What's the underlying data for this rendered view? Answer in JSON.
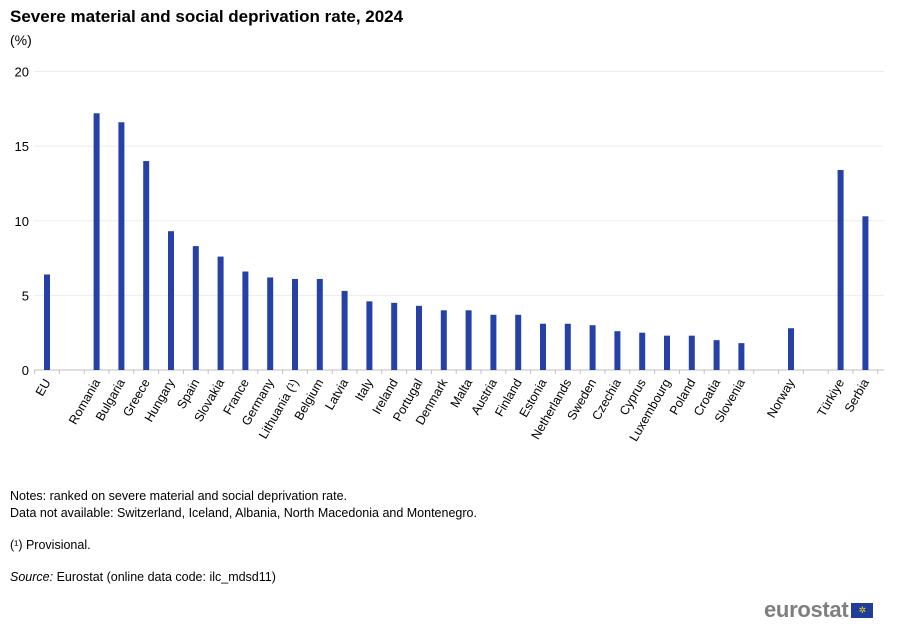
{
  "chart_data": {
    "type": "bar",
    "title": "Severe material and social deprivation rate, 2024",
    "ylabel": "(%)",
    "ylim": [
      0,
      20
    ],
    "yticks": [
      0,
      5,
      10,
      15,
      20
    ],
    "grid": true,
    "color": "#2541a8",
    "categories": [
      "EU",
      "Romania",
      "Bulgaria",
      "Greece",
      "Hungary",
      "Spain",
      "Slovakia",
      "France",
      "Germany",
      "Lithuania (¹)",
      "Belgium",
      "Latvia",
      "Italy",
      "Ireland",
      "Portugal",
      "Denmark",
      "Malta",
      "Austria",
      "Finland",
      "Estonia",
      "Netherlands",
      "Sweden",
      "Czechia",
      "Cyprus",
      "Luxembourg",
      "Poland",
      "Croatia",
      "Slovenia",
      "Norway",
      "Türkiye",
      "Serbia"
    ],
    "values": [
      6.4,
      17.2,
      16.6,
      14.0,
      9.3,
      8.3,
      7.6,
      6.6,
      6.2,
      6.1,
      6.1,
      5.3,
      4.6,
      4.5,
      4.3,
      4.0,
      4.0,
      3.7,
      3.7,
      3.1,
      3.1,
      3.0,
      2.6,
      2.5,
      2.3,
      2.3,
      2.0,
      1.8,
      2.8,
      13.4,
      10.3
    ]
  },
  "notes": {
    "line1": "Notes: ranked on severe material and social deprivation rate.",
    "line2": "Data not available: Switzerland, Iceland, Albania, North Macedonia and Montenegro.",
    "provisional": "(¹) Provisional.",
    "source_label": "Source:",
    "source_text": " Eurostat (online data code: ilc_mdsd11)"
  },
  "logo": {
    "text": "eurostat",
    "flag_stars": "✲"
  }
}
